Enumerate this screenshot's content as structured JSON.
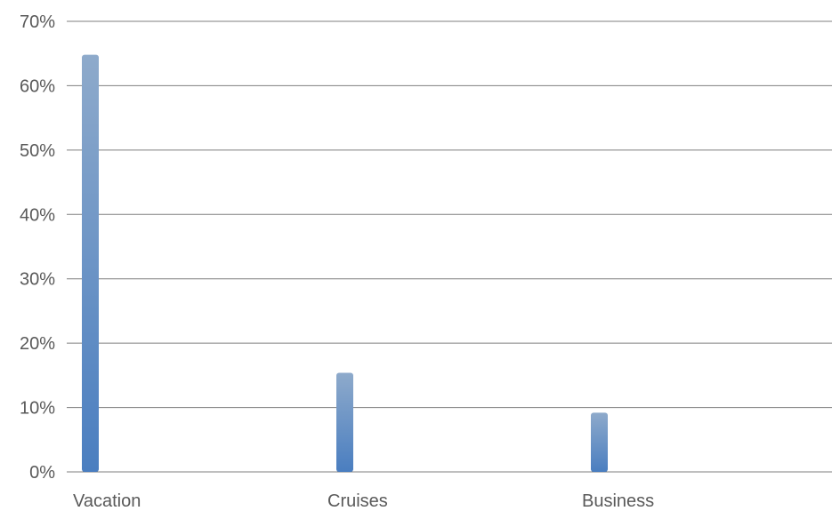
{
  "chart_data": {
    "type": "bar",
    "categories": [
      "Vacation",
      "Cruises",
      "Business"
    ],
    "values": [
      64.8,
      15.4,
      9.2
    ],
    "title": "",
    "xlabel": "",
    "ylabel": "",
    "ylim": [
      0,
      70
    ],
    "y_ticks": [
      "0%",
      "10%",
      "20%",
      "30%",
      "40%",
      "50%",
      "60%",
      "70%"
    ],
    "y_tick_values": [
      0,
      10,
      20,
      30,
      40,
      50,
      60,
      70
    ],
    "grid": true,
    "legend": "none",
    "colors": {
      "bar_top": "#8eaacb",
      "bar_bottom": "#4a7ec0",
      "grid": "#7f7f7f",
      "text": "#595959"
    }
  }
}
